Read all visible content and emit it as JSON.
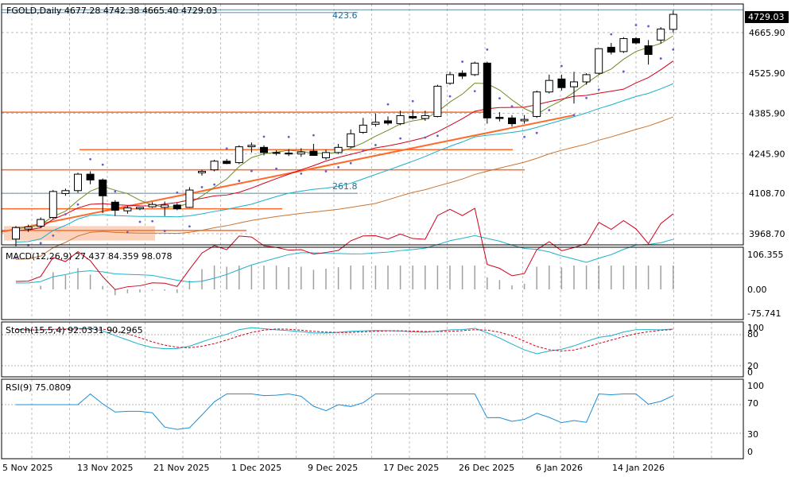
{
  "header": {
    "symbol_line": "FGOLD,Daily  4677.28 4742.38 4665.40 4729.03",
    "last_price": "4729.03"
  },
  "price_axis": {
    "labels": [
      "4665.90",
      "4525.90",
      "4385.90",
      "4245.90",
      "4108.70",
      "3968.70"
    ],
    "values": [
      4665.9,
      4525.9,
      4385.9,
      4245.9,
      4108.7,
      3968.7
    ],
    "range": [
      3930,
      4765
    ]
  },
  "fib_labels": {
    "top": "423.6",
    "mid": "261.8"
  },
  "date_axis": [
    "5 Nov 2025",
    "13 Nov 2025",
    "21 Nov 2025",
    "1 Dec 2025",
    "9 Dec 2025",
    "17 Dec 2025",
    "26 Dec 2025",
    "6 Jan 2026",
    "14 Jan 2026"
  ],
  "panels": {
    "macd": {
      "title": "MACD(12,26,9) 27.437 84.359 98.078",
      "labels": [
        "106.355",
        "0.00",
        "-75.741"
      ]
    },
    "stoch": {
      "title": "Stoch(15,5,4) 92.0331 90.2965",
      "labels": [
        "100",
        "80",
        "20",
        "0"
      ]
    },
    "rsi": {
      "title": "RSI(9) 75.0809",
      "labels": [
        "100",
        "70",
        "30",
        "0"
      ]
    }
  },
  "colors": {
    "bull": "#ffffff",
    "bear": "#000000",
    "sma_fast": "#6b8e23",
    "sma_mid": "#d0021b",
    "sma_cyan": "#1ab0c8",
    "sma_slow": "#c87533",
    "orange": "#ff6a2a",
    "psar": "#6a5acd",
    "grid": "#b0b0b0",
    "macd_signal": "#20b2c8",
    "macd_line": "#d0021b",
    "stoch_main": "#1ab0c8",
    "stoch_signal": "#d0021b",
    "rsi": "#1a8fd6"
  },
  "chart_data": {
    "type": "candlestick",
    "title": "FGOLD,Daily",
    "ohlc": [
      [
        3950,
        3995,
        3925,
        3990
      ],
      [
        3985,
        4000,
        3975,
        3992
      ],
      [
        3995,
        4025,
        3988,
        4018
      ],
      [
        4025,
        4120,
        4020,
        4115
      ],
      [
        4108,
        4125,
        4100,
        4118
      ],
      [
        4118,
        4180,
        4110,
        4175
      ],
      [
        4175,
        4185,
        4140,
        4155
      ],
      [
        4155,
        4160,
        4040,
        4100
      ],
      [
        4078,
        4085,
        4030,
        4050
      ],
      [
        4048,
        4065,
        4038,
        4058
      ],
      [
        4055,
        4060,
        4050,
        4060
      ],
      [
        4062,
        4078,
        4058,
        4070
      ],
      [
        4060,
        4080,
        4030,
        4068
      ],
      [
        4068,
        4075,
        4050,
        4055
      ],
      [
        4060,
        4130,
        4058,
        4120
      ],
      [
        4180,
        4190,
        4170,
        4185
      ],
      [
        4190,
        4225,
        4185,
        4220
      ],
      [
        4220,
        4228,
        4210,
        4212
      ],
      [
        4215,
        4275,
        4210,
        4270
      ],
      [
        4270,
        4285,
        4250,
        4275
      ],
      [
        4268,
        4275,
        4240,
        4250
      ],
      [
        4248,
        4258,
        4240,
        4250
      ],
      [
        4248,
        4262,
        4238,
        4245
      ],
      [
        4245,
        4265,
        4235,
        4252
      ],
      [
        4255,
        4280,
        4240,
        4240
      ],
      [
        4232,
        4260,
        4225,
        4250
      ],
      [
        4250,
        4280,
        4245,
        4268
      ],
      [
        4270,
        4330,
        4265,
        4315
      ],
      [
        4320,
        4370,
        4315,
        4345
      ],
      [
        4348,
        4385,
        4340,
        4355
      ],
      [
        4360,
        4375,
        4345,
        4352
      ],
      [
        4350,
        4395,
        4345,
        4378
      ],
      [
        4375,
        4398,
        4365,
        4370
      ],
      [
        4368,
        4395,
        4360,
        4378
      ],
      [
        4375,
        4485,
        4372,
        4480
      ],
      [
        4490,
        4530,
        4485,
        4520
      ],
      [
        4525,
        4535,
        4505,
        4515
      ],
      [
        4520,
        4565,
        4515,
        4560
      ],
      [
        4560,
        4565,
        4350,
        4370
      ],
      [
        4372,
        4390,
        4358,
        4368
      ],
      [
        4370,
        4380,
        4340,
        4350
      ],
      [
        4360,
        4380,
        4350,
        4365
      ],
      [
        4375,
        4465,
        4370,
        4460
      ],
      [
        4460,
        4520,
        4455,
        4500
      ],
      [
        4505,
        4520,
        4465,
        4475
      ],
      [
        4478,
        4530,
        4420,
        4495
      ],
      [
        4495,
        4525,
        4485,
        4520
      ],
      [
        4525,
        4610,
        4520,
        4610
      ],
      [
        4615,
        4630,
        4590,
        4598
      ],
      [
        4600,
        4650,
        4595,
        4645
      ],
      [
        4645,
        4650,
        4625,
        4630
      ],
      [
        4620,
        4640,
        4555,
        4590
      ],
      [
        4640,
        4685,
        4628,
        4678
      ],
      [
        4677,
        4742,
        4665,
        4729
      ]
    ],
    "xlabels": [
      "5 Nov 2025",
      "13 Nov 2025",
      "21 Nov 2025",
      "1 Dec 2025",
      "9 Dec 2025",
      "17 Dec 2025",
      "26 Dec 2025",
      "6 Jan 2026",
      "14 Jan 2026"
    ],
    "ylim": [
      3930,
      4765
    ],
    "horizontal_levels": [
      4390,
      4260,
      4190,
      4055,
      3980
    ]
  }
}
